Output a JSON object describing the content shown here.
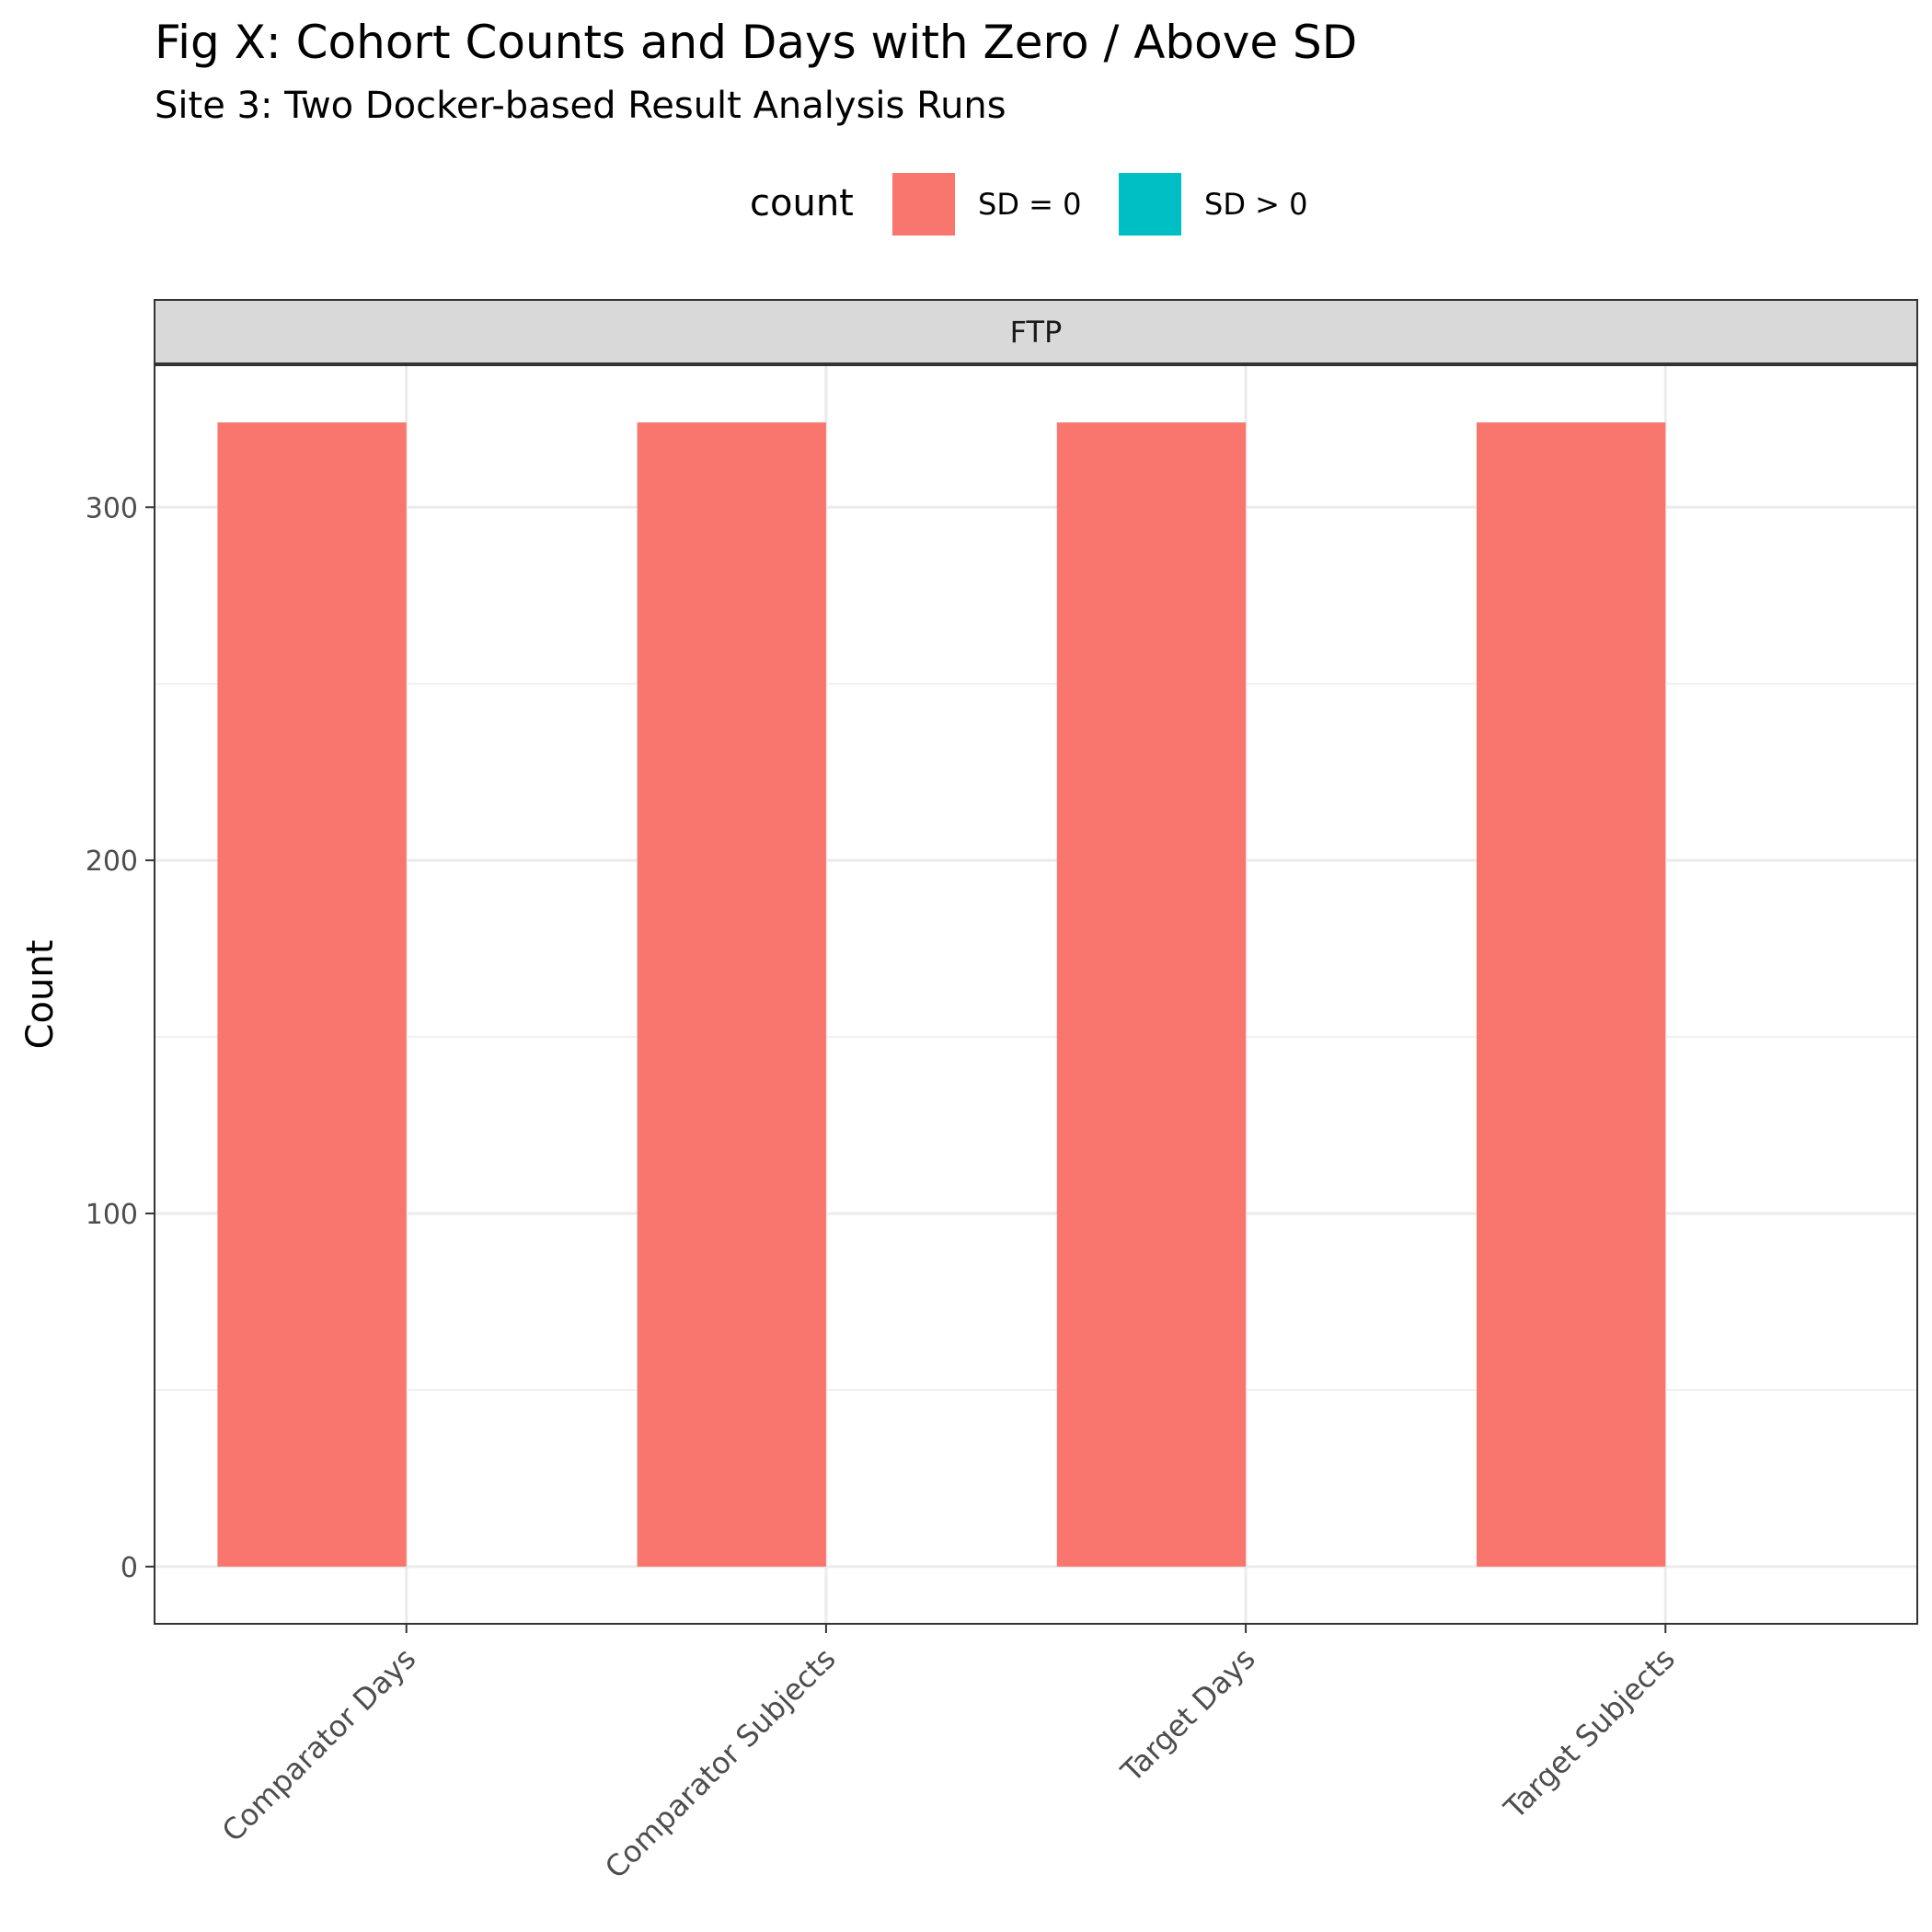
{
  "chart_data": {
    "type": "bar",
    "title": "Fig X: Cohort Counts and Days with Zero / Above SD",
    "subtitle": "Site 3: Two Docker-based Result Analysis Runs",
    "xlabel": "",
    "ylabel": "Count",
    "facet": "FTP",
    "legend": {
      "title": "count",
      "placement": "top",
      "entries": [
        {
          "label": "SD = 0",
          "color": "#F8766D"
        },
        {
          "label": "SD > 0",
          "color": "#00BFC4"
        }
      ]
    },
    "categories": [
      "Comparator Days",
      "Comparator Subjects",
      "Target Days",
      "Target Subjects"
    ],
    "series": [
      {
        "name": "SD = 0",
        "color": "#F8766D",
        "values": [
          324,
          324,
          324,
          324
        ]
      },
      {
        "name": "SD > 0",
        "color": "#00BFC4",
        "values": [
          0,
          0,
          0,
          0
        ]
      }
    ],
    "yticks": [
      0,
      100,
      200,
      300
    ],
    "ylim": [
      -16.2,
      340.2
    ],
    "grid": true
  }
}
